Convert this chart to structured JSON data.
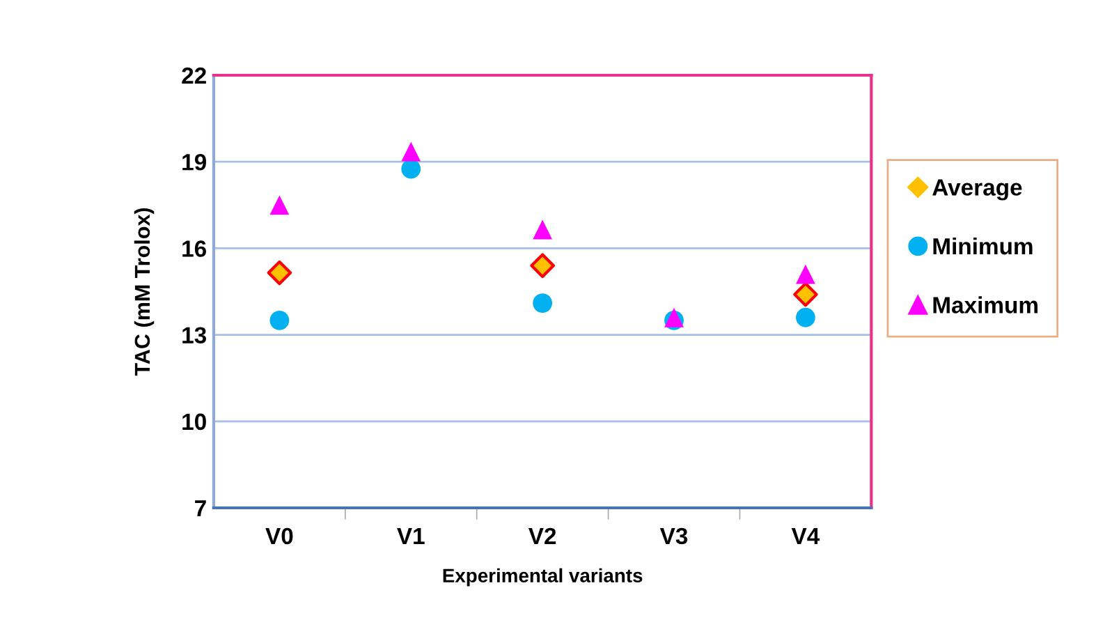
{
  "chart_data": {
    "type": "scatter",
    "xlabel": "Experimental variants",
    "ylabel": "TAC (mM Trolox)",
    "categories": [
      "V0",
      "V1",
      "V2",
      "V3",
      "V4"
    ],
    "series": [
      {
        "name": "Average",
        "color": "#ffc000",
        "marker": "diamond",
        "values": [
          15.15,
          null,
          15.4,
          null,
          14.4
        ]
      },
      {
        "name": "Minimum",
        "color": "#00b0f0",
        "marker": "circle",
        "values": [
          13.5,
          18.75,
          14.1,
          13.5,
          13.6
        ]
      },
      {
        "name": "Maximum",
        "color": "#ff00ff",
        "marker": "triangle",
        "values": [
          17.5,
          19.35,
          16.65,
          13.6,
          15.1
        ]
      }
    ],
    "ylim": [
      7,
      22
    ],
    "yticks": [
      7,
      10,
      13,
      16,
      19,
      22
    ],
    "grid": "y",
    "legend": "right"
  }
}
